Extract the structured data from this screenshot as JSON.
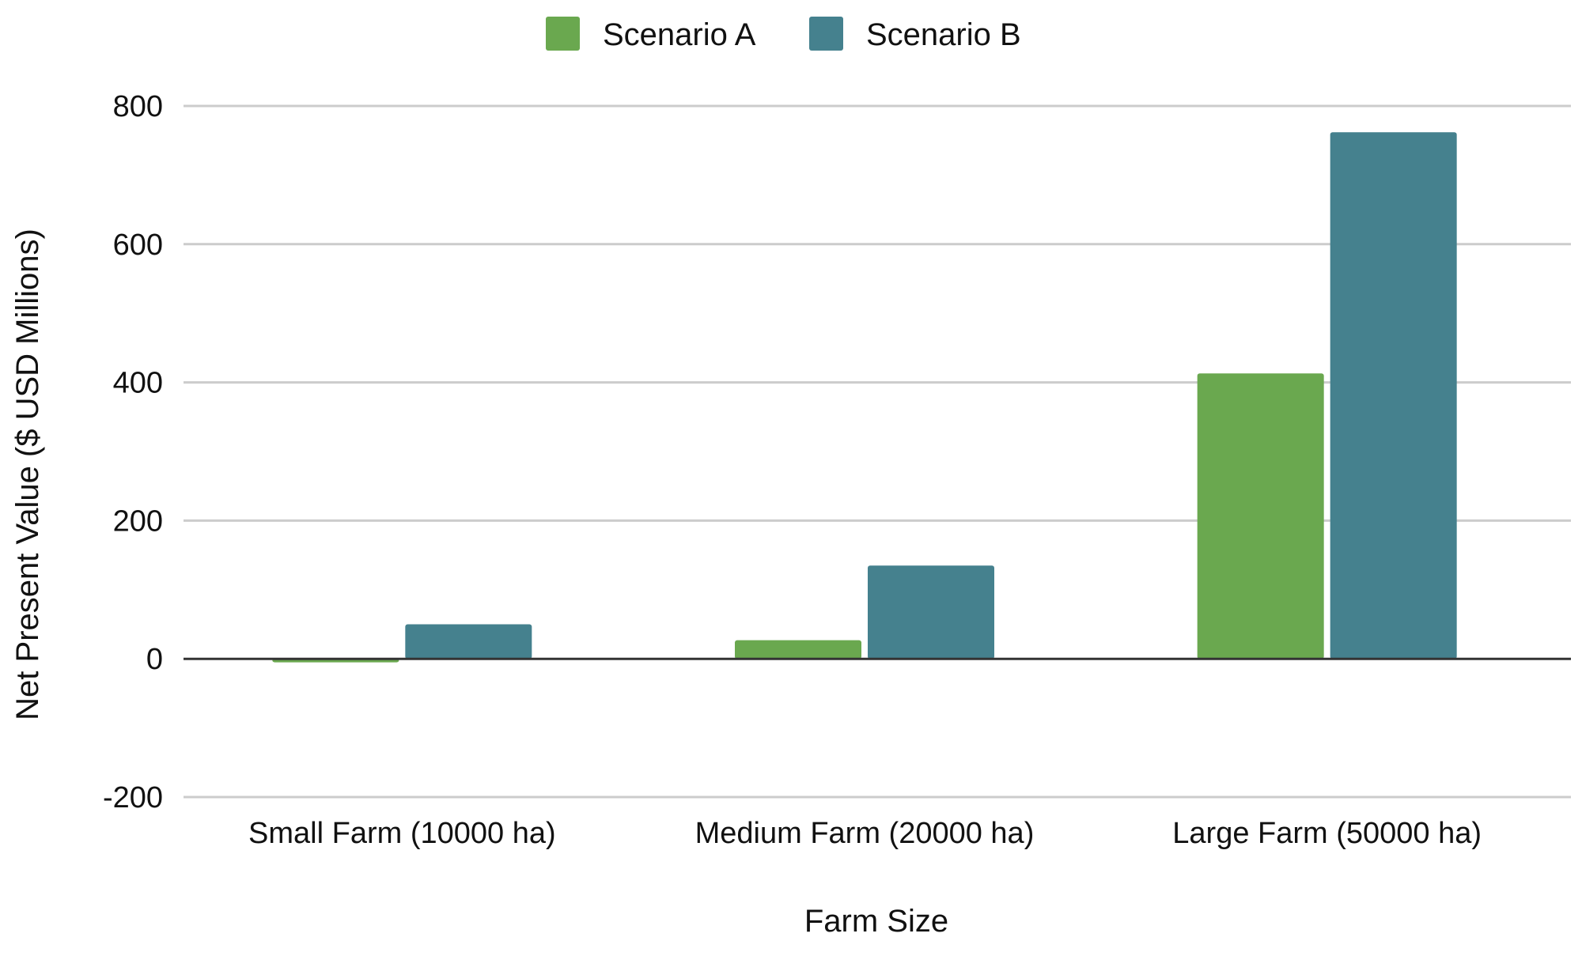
{
  "chart_data": {
    "type": "bar",
    "title": "",
    "xlabel": "Farm Size",
    "ylabel": "Net Present Value ($ USD Millions)",
    "categories": [
      "Small Farm (10000 ha)",
      "Medium Farm (20000 ha)",
      "Large Farm (50000 ha)"
    ],
    "series": [
      {
        "name": "Scenario A",
        "color": "#6aa84f",
        "values": [
          -5,
          27,
          413
        ]
      },
      {
        "name": "Scenario B",
        "color": "#45818e",
        "values": [
          50,
          135,
          762
        ]
      }
    ],
    "ylim": [
      -200,
      800
    ],
    "yticks": [
      -200,
      0,
      200,
      400,
      600,
      800
    ],
    "ytick_labels": [
      "-200",
      "0",
      "200",
      "400",
      "600",
      "800"
    ],
    "grid": true,
    "legend_position": "top"
  }
}
